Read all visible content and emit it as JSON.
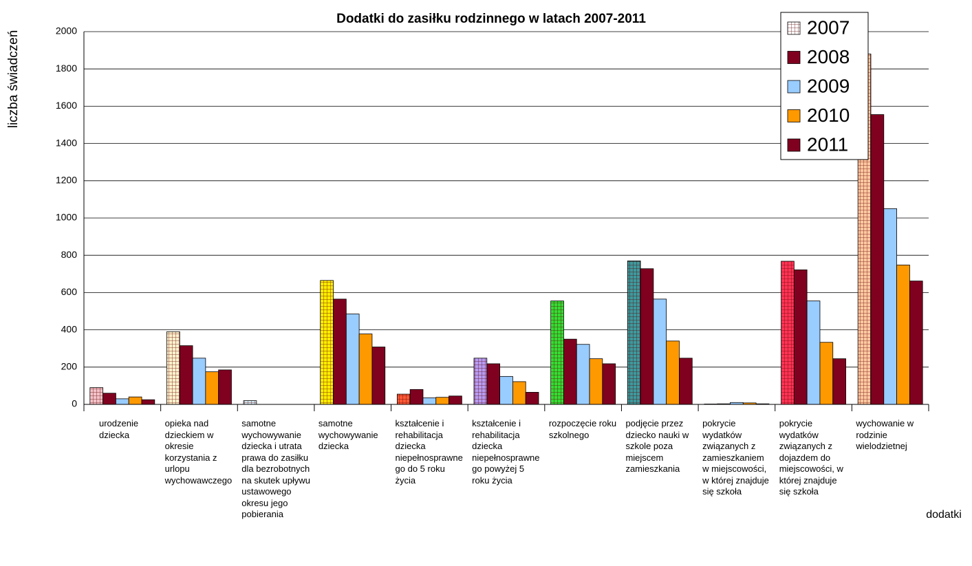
{
  "chart_data": {
    "type": "bar",
    "title": "Dodatki do zasiłku rodzinnego w latach 2007-2011",
    "y_label": "liczba świadczeń",
    "x_label": "dodatki",
    "categories": [
      "urodzenie dziecka",
      "opieka nad dzieckiem w okresie korzystania z urlopu wychowawczego",
      "samotne wychowywanie dziecka i utrata prawa do zasiłku dla bezrobotnych na skutek upływu ustawowego okresu jego pobierania",
      "samotne wychowywanie dziecka",
      "kształcenie i rehabilitacja dziecka niepełnosprawnego do 5 roku życia",
      "kształcenie i rehabilitacja dziecka niepełnosprawnego powyżej 5 roku życia",
      "rozpoczęcie roku szkolnego",
      "podjęcie przez dziecko nauki w szkole poza miejscem zamieszkania",
      "pokrycie wydatków związanych z zamieszkaniem w miejscowości, w której znajduje się szkoła",
      "pokrycie wydatków związanych z dojazdem do miejscowości, w której znajduje się szkoła",
      "wychowanie w rodzinie wielodzietnej"
    ],
    "series": [
      {
        "name": "2007",
        "color": "#ffffff",
        "point_colors": [
          "#f4c2c8",
          "#fff2cc",
          "#d6ecf7",
          "#ffee00",
          "#ff5a36",
          "#b79cf2",
          "#33dd33",
          "#3d9a9e",
          "#ffffff",
          "#ff3355",
          "#ffc8a0"
        ],
        "values": [
          90,
          390,
          20,
          665,
          55,
          248,
          555,
          770,
          2,
          768,
          1880
        ]
      },
      {
        "name": "2008",
        "color": "#800020",
        "values": [
          60,
          315,
          0,
          565,
          80,
          218,
          350,
          728,
          3,
          722,
          1555
        ]
      },
      {
        "name": "2009",
        "color": "#99ccff",
        "values": [
          30,
          248,
          0,
          485,
          35,
          150,
          322,
          565,
          10,
          555,
          1050
        ]
      },
      {
        "name": "2010",
        "color": "#ff9900",
        "values": [
          40,
          175,
          0,
          378,
          38,
          122,
          245,
          340,
          8,
          333,
          748
        ]
      },
      {
        "name": "2011",
        "color": "#800020",
        "values": [
          25,
          185,
          0,
          308,
          45,
          65,
          218,
          248,
          3,
          245,
          662
        ]
      }
    ],
    "ylim": [
      0,
      2000
    ],
    "yticks": [
      0,
      200,
      400,
      600,
      800,
      1000,
      1200,
      1400,
      1600,
      1800,
      2000
    ],
    "grid": true,
    "legend": "top-right"
  }
}
